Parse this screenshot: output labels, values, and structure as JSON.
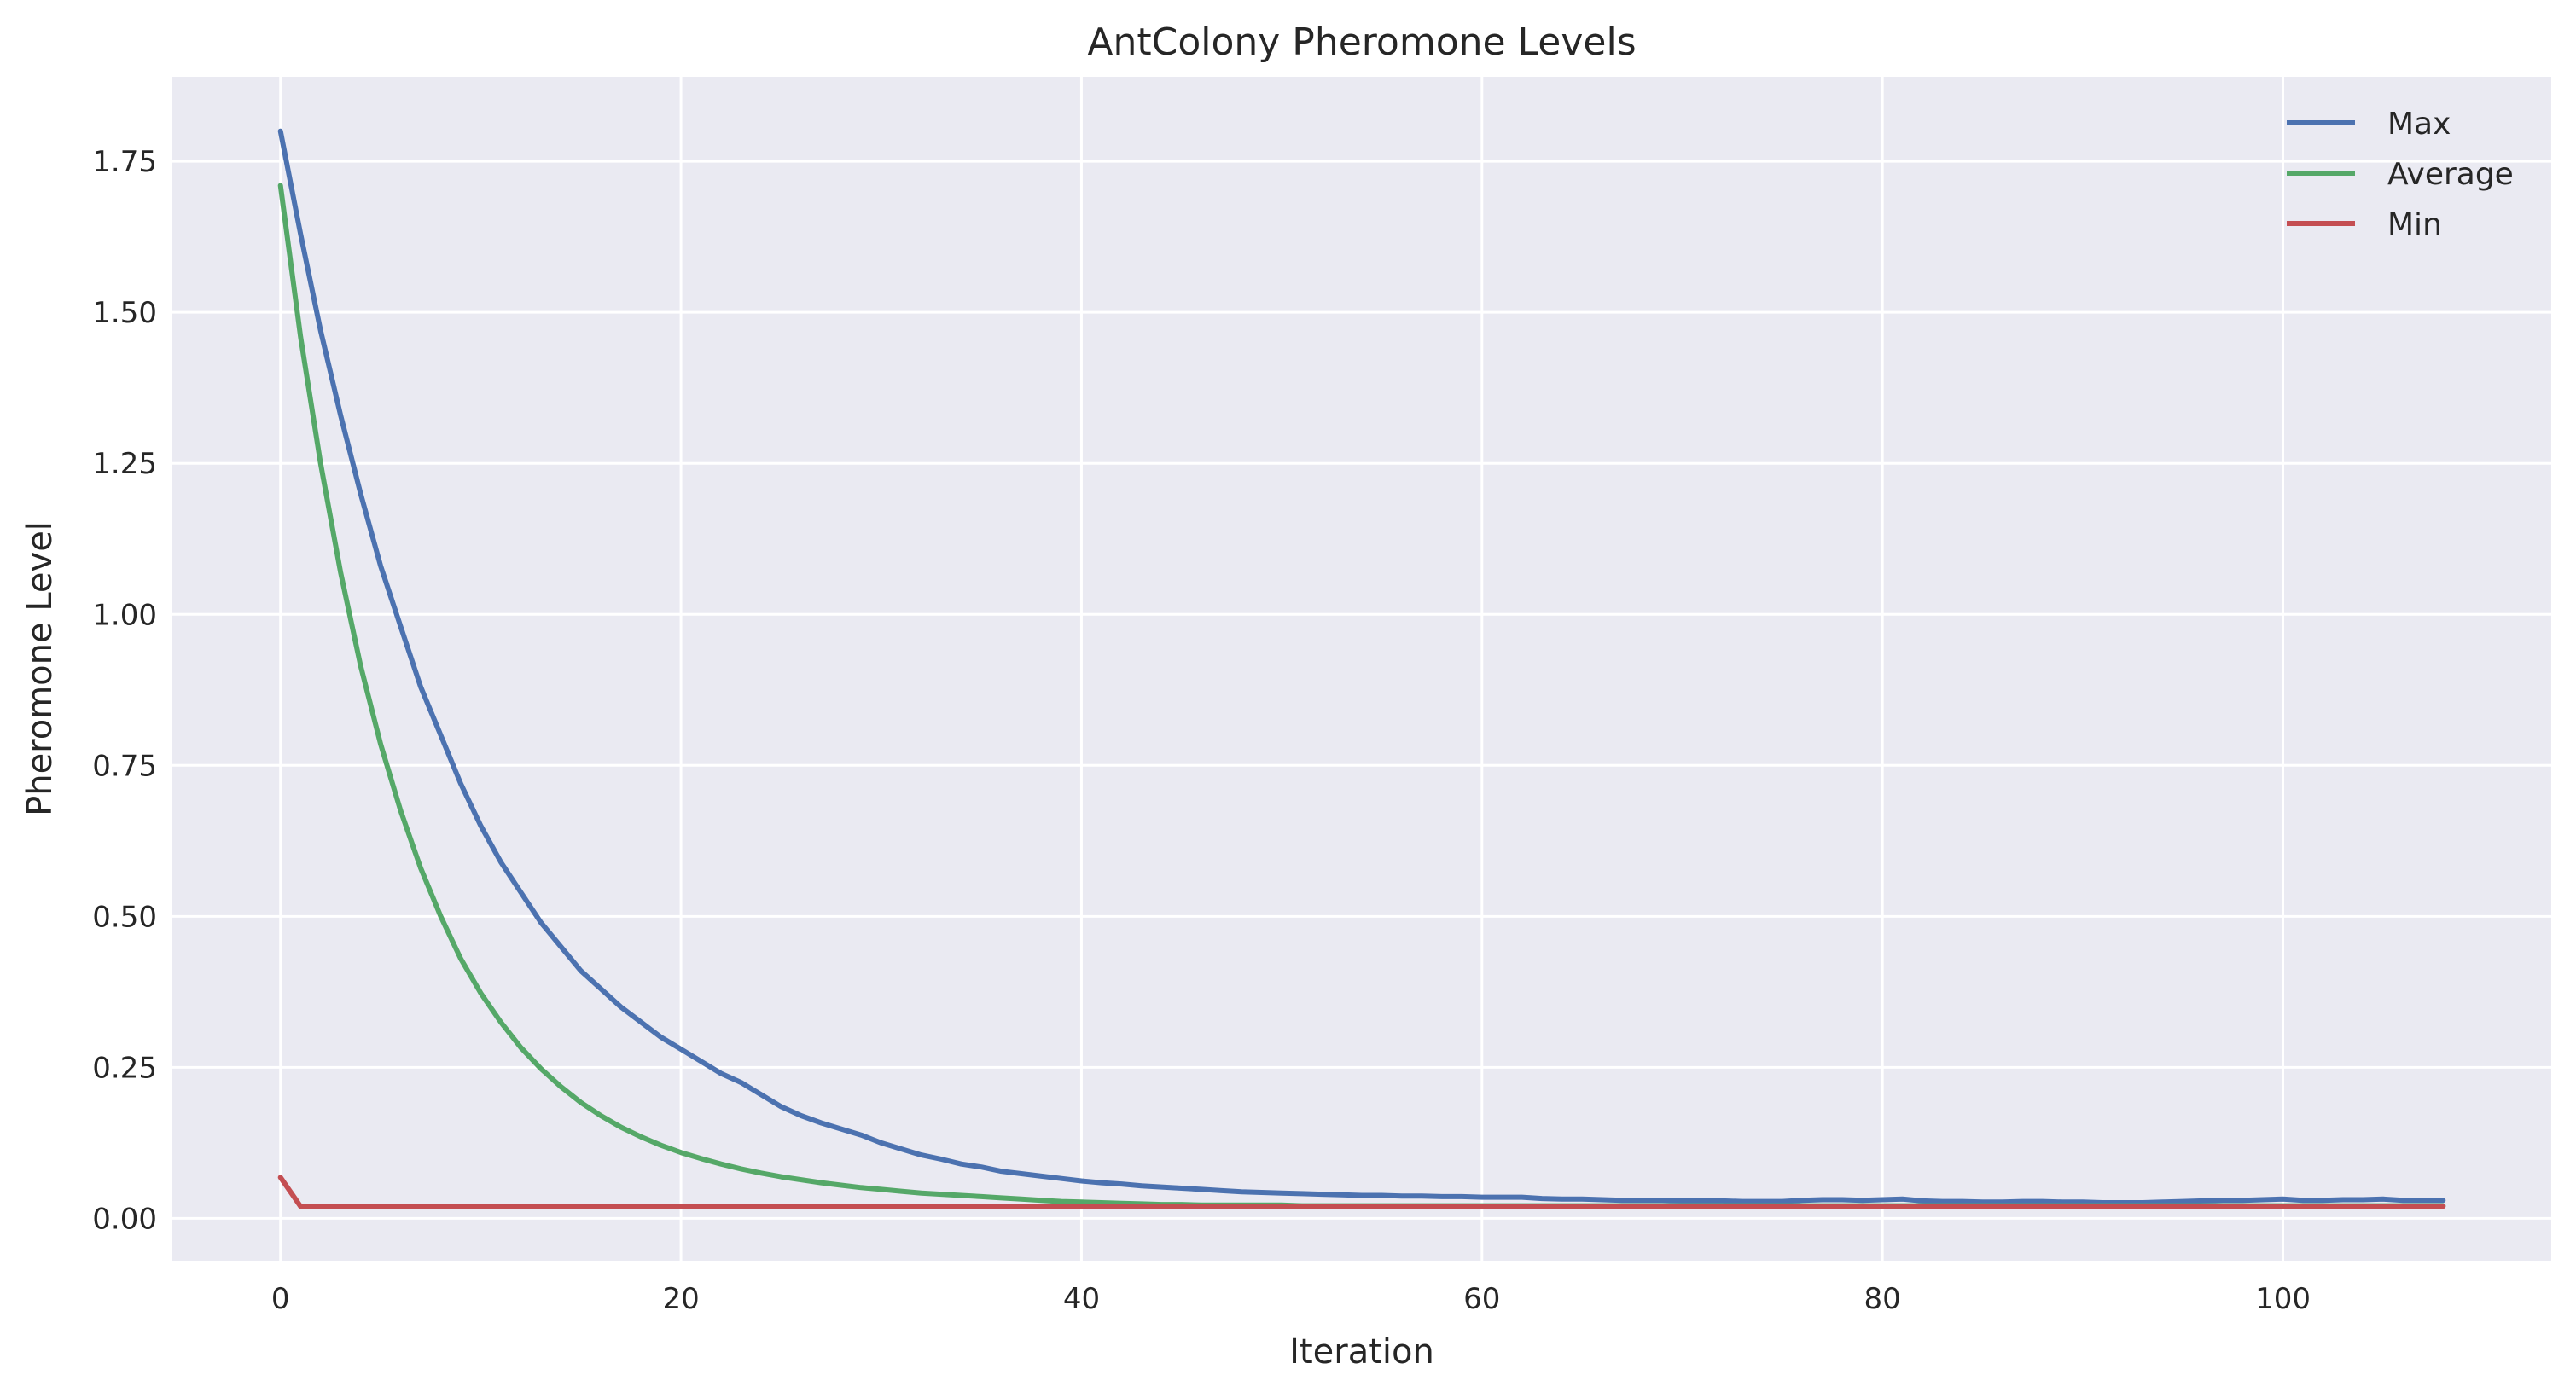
{
  "chart_data": {
    "type": "line",
    "title": "AntColony Pheromone Levels",
    "xlabel": "Iteration",
    "ylabel": "Pheromone Level",
    "xlim": [
      -5.4,
      113.4
    ],
    "ylim": [
      -0.07,
      1.89
    ],
    "xticks": [
      0,
      20,
      40,
      60,
      80,
      100
    ],
    "xtick_labels": [
      "0",
      "20",
      "40",
      "60",
      "80",
      "100"
    ],
    "yticks": [
      0,
      0.25,
      0.5,
      0.75,
      1.0,
      1.25,
      1.5,
      1.75
    ],
    "ytick_labels": [
      "0.00",
      "0.25",
      "0.50",
      "0.75",
      "1.00",
      "1.25",
      "1.50",
      "1.75"
    ],
    "grid": true,
    "legend": "top-right",
    "background": "#eaeaf2",
    "series": [
      {
        "name": "Max",
        "color": "#4c72b0",
        "x": [
          0,
          1,
          2,
          3,
          4,
          5,
          6,
          7,
          8,
          9,
          10,
          11,
          12,
          13,
          14,
          15,
          16,
          17,
          18,
          19,
          20,
          21,
          22,
          23,
          24,
          25,
          26,
          27,
          28,
          29,
          30,
          31,
          32,
          33,
          34,
          35,
          36,
          37,
          38,
          39,
          40,
          41,
          42,
          43,
          44,
          45,
          46,
          47,
          48,
          49,
          50,
          51,
          52,
          53,
          54,
          55,
          56,
          57,
          58,
          59,
          60,
          61,
          62,
          63,
          64,
          65,
          66,
          67,
          68,
          69,
          70,
          71,
          72,
          73,
          74,
          75,
          76,
          77,
          78,
          79,
          80,
          81,
          82,
          83,
          84,
          85,
          86,
          87,
          88,
          89,
          90,
          91,
          92,
          93,
          94,
          95,
          96,
          97,
          98,
          99,
          100,
          101,
          102,
          103,
          104,
          105,
          106,
          107,
          108
        ],
        "values": [
          1.8,
          1.63,
          1.47,
          1.33,
          1.2,
          1.08,
          0.98,
          0.88,
          0.8,
          0.72,
          0.65,
          0.59,
          0.54,
          0.49,
          0.45,
          0.41,
          0.38,
          0.35,
          0.325,
          0.3,
          0.28,
          0.26,
          0.24,
          0.225,
          0.205,
          0.185,
          0.17,
          0.158,
          0.148,
          0.138,
          0.125,
          0.115,
          0.105,
          0.098,
          0.09,
          0.085,
          0.078,
          0.074,
          0.07,
          0.066,
          0.062,
          0.059,
          0.057,
          0.054,
          0.052,
          0.05,
          0.048,
          0.046,
          0.044,
          0.043,
          0.042,
          0.041,
          0.04,
          0.039,
          0.038,
          0.038,
          0.037,
          0.037,
          0.036,
          0.036,
          0.035,
          0.035,
          0.035,
          0.033,
          0.032,
          0.032,
          0.031,
          0.03,
          0.03,
          0.03,
          0.029,
          0.029,
          0.029,
          0.028,
          0.028,
          0.028,
          0.03,
          0.031,
          0.031,
          0.03,
          0.031,
          0.032,
          0.029,
          0.028,
          0.028,
          0.027,
          0.027,
          0.028,
          0.028,
          0.027,
          0.027,
          0.026,
          0.026,
          0.026,
          0.027,
          0.028,
          0.029,
          0.03,
          0.03,
          0.031,
          0.032,
          0.03,
          0.03,
          0.031,
          0.031,
          0.032,
          0.03,
          0.03,
          0.03
        ]
      },
      {
        "name": "Average",
        "color": "#55a868",
        "x": [
          0,
          1,
          2,
          3,
          4,
          5,
          6,
          7,
          8,
          9,
          10,
          11,
          12,
          13,
          14,
          15,
          16,
          17,
          18,
          19,
          20,
          21,
          22,
          23,
          24,
          25,
          26,
          27,
          28,
          29,
          30,
          31,
          32,
          33,
          34,
          35,
          36,
          37,
          38,
          39,
          40,
          41,
          42,
          43,
          44,
          45,
          46,
          47,
          48,
          49,
          50,
          51,
          52,
          53,
          54,
          55,
          56,
          57,
          58,
          59,
          60,
          61,
          62,
          63,
          64,
          65,
          66,
          67,
          68,
          69,
          70,
          71,
          72,
          73,
          74,
          75,
          76,
          77,
          78,
          79,
          80,
          81,
          82,
          83,
          84,
          85,
          86,
          87,
          88,
          89,
          90,
          91,
          92,
          93,
          94,
          95,
          96,
          97,
          98,
          99,
          100,
          101,
          102,
          103,
          104,
          105,
          106,
          107,
          108
        ],
        "values": [
          1.71,
          1.46,
          1.25,
          1.07,
          0.915,
          0.785,
          0.675,
          0.58,
          0.5,
          0.43,
          0.373,
          0.325,
          0.283,
          0.248,
          0.218,
          0.192,
          0.17,
          0.151,
          0.135,
          0.121,
          0.109,
          0.099,
          0.09,
          0.082,
          0.075,
          0.069,
          0.064,
          0.059,
          0.055,
          0.051,
          0.048,
          0.045,
          0.042,
          0.04,
          0.038,
          0.036,
          0.034,
          0.032,
          0.03,
          0.028,
          0.027,
          0.026,
          0.025,
          0.024,
          0.023,
          0.023,
          0.022,
          0.022,
          0.022,
          0.022,
          0.022,
          0.021,
          0.021,
          0.021,
          0.021,
          0.021,
          0.021,
          0.021,
          0.021,
          0.021,
          0.021,
          0.021,
          0.021,
          0.021,
          0.021,
          0.021,
          0.021,
          0.021,
          0.021,
          0.021,
          0.021,
          0.021,
          0.021,
          0.021,
          0.021,
          0.021,
          0.021,
          0.021,
          0.021,
          0.021,
          0.021,
          0.021,
          0.021,
          0.021,
          0.021,
          0.021,
          0.021,
          0.021,
          0.021,
          0.021,
          0.021,
          0.021,
          0.021,
          0.021,
          0.021,
          0.021,
          0.021,
          0.021,
          0.021,
          0.021,
          0.021,
          0.021,
          0.021,
          0.021,
          0.021,
          0.021,
          0.021,
          0.021,
          0.021
        ]
      },
      {
        "name": "Min",
        "color": "#c44e52",
        "x": [
          0,
          1,
          2,
          3,
          4,
          5,
          6,
          7,
          8,
          9,
          10,
          11,
          12,
          13,
          14,
          15,
          16,
          17,
          18,
          19,
          20,
          21,
          22,
          23,
          24,
          25,
          26,
          27,
          28,
          29,
          30,
          31,
          32,
          33,
          34,
          35,
          36,
          37,
          38,
          39,
          40,
          41,
          42,
          43,
          44,
          45,
          46,
          47,
          48,
          49,
          50,
          51,
          52,
          53,
          54,
          55,
          56,
          57,
          58,
          59,
          60,
          61,
          62,
          63,
          64,
          65,
          66,
          67,
          68,
          69,
          70,
          71,
          72,
          73,
          74,
          75,
          76,
          77,
          78,
          79,
          80,
          81,
          82,
          83,
          84,
          85,
          86,
          87,
          88,
          89,
          90,
          91,
          92,
          93,
          94,
          95,
          96,
          97,
          98,
          99,
          100,
          101,
          102,
          103,
          104,
          105,
          106,
          107,
          108
        ],
        "values": [
          0.068,
          0.02,
          0.02,
          0.02,
          0.02,
          0.02,
          0.02,
          0.02,
          0.02,
          0.02,
          0.02,
          0.02,
          0.02,
          0.02,
          0.02,
          0.02,
          0.02,
          0.02,
          0.02,
          0.02,
          0.02,
          0.02,
          0.02,
          0.02,
          0.02,
          0.02,
          0.02,
          0.02,
          0.02,
          0.02,
          0.02,
          0.02,
          0.02,
          0.02,
          0.02,
          0.02,
          0.02,
          0.02,
          0.02,
          0.02,
          0.02,
          0.02,
          0.02,
          0.02,
          0.02,
          0.02,
          0.02,
          0.02,
          0.02,
          0.02,
          0.02,
          0.02,
          0.02,
          0.02,
          0.02,
          0.02,
          0.02,
          0.02,
          0.02,
          0.02,
          0.02,
          0.02,
          0.02,
          0.02,
          0.02,
          0.02,
          0.02,
          0.02,
          0.02,
          0.02,
          0.02,
          0.02,
          0.02,
          0.02,
          0.02,
          0.02,
          0.02,
          0.02,
          0.02,
          0.02,
          0.02,
          0.02,
          0.02,
          0.02,
          0.02,
          0.02,
          0.02,
          0.02,
          0.02,
          0.02,
          0.02,
          0.02,
          0.02,
          0.02,
          0.02,
          0.02,
          0.02,
          0.02,
          0.02,
          0.02,
          0.02,
          0.02,
          0.02,
          0.02,
          0.02,
          0.02,
          0.02,
          0.02,
          0.02
        ]
      }
    ]
  }
}
